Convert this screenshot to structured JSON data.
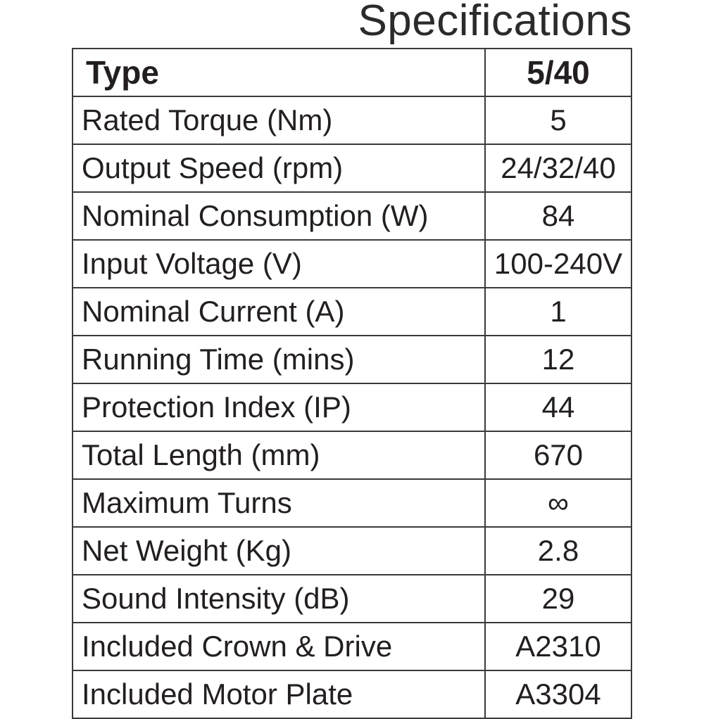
{
  "title": "Specifications",
  "header": {
    "label": "Type",
    "value": "5/40"
  },
  "rows": [
    {
      "label": "Rated Torque (Nm)",
      "value": "5"
    },
    {
      "label": "Output Speed (rpm)",
      "value": "24/32/40"
    },
    {
      "label": "Nominal Consumption (W)",
      "value": "84"
    },
    {
      "label": "Input Voltage (V)",
      "value": "100-240V"
    },
    {
      "label": "Nominal Current (A)",
      "value": "1"
    },
    {
      "label": "Running Time (mins)",
      "value": "12"
    },
    {
      "label": "Protection Index (IP)",
      "value": "44"
    },
    {
      "label": "Total Length (mm)",
      "value": "670"
    },
    {
      "label": "Maximum Turns",
      "value": "∞"
    },
    {
      "label": "Net Weight (Kg)",
      "value": "2.8"
    },
    {
      "label": "Sound Intensity (dB)",
      "value": "29"
    },
    {
      "label": "Included Crown & Drive",
      "value": "A2310"
    },
    {
      "label": "Included Motor Plate",
      "value": "A3304"
    }
  ]
}
